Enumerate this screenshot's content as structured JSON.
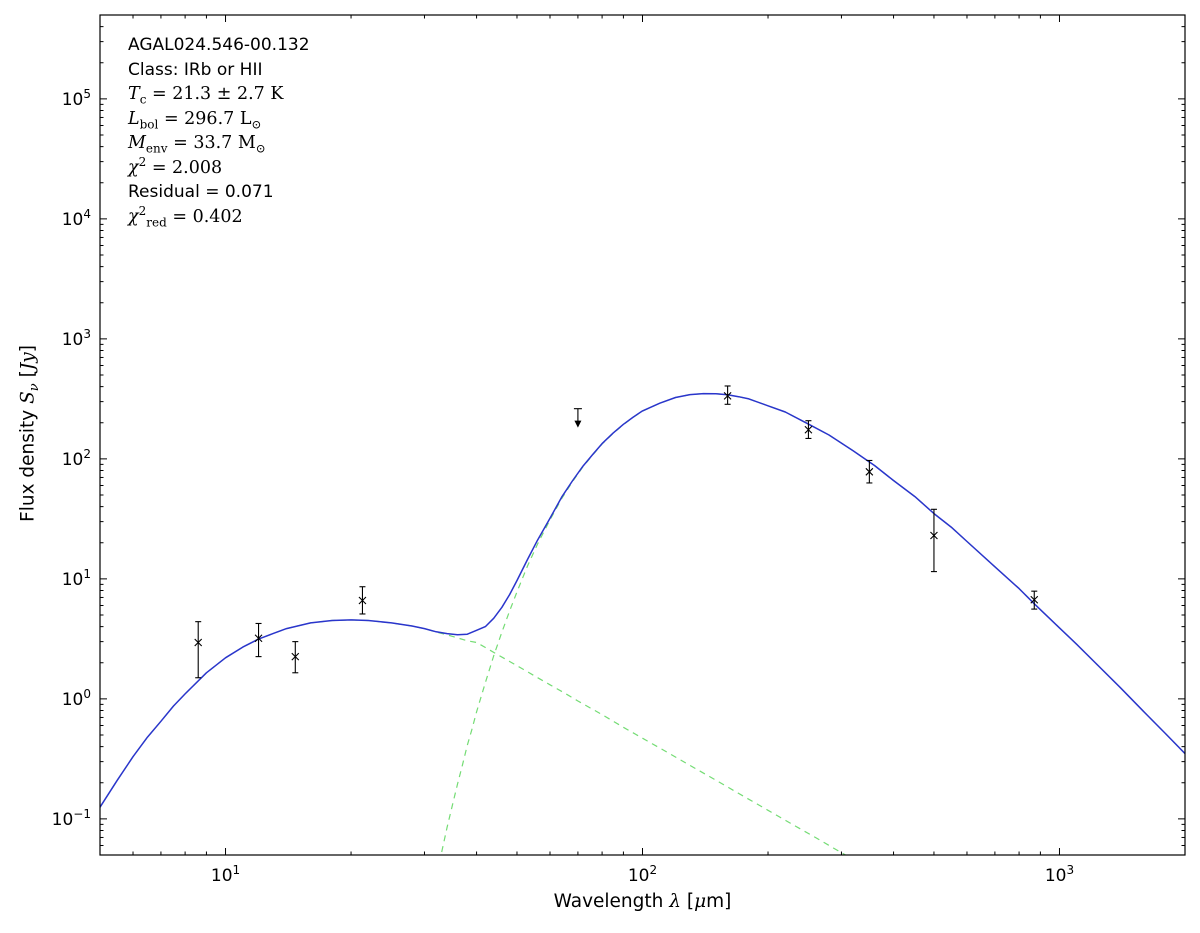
{
  "annotation": {
    "source": "AGAL024.546-00.132",
    "class_line": "Class: IRb or HII",
    "tc": {
      "sym": "T",
      "sub": "c",
      "rest": " = 21.3 ± 2.7 K"
    },
    "lbol": {
      "sym": "L",
      "sub": "bol",
      "rest": " = 296.7 L",
      "unit_sub": "⊙"
    },
    "menv": {
      "sym": "M",
      "sub": "env",
      "rest": " = 33.7 M",
      "unit_sub": "⊙"
    },
    "chi2": {
      "sym": "χ",
      "sup": "2",
      "rest": " = 2.008"
    },
    "residual": "Residual = 0.071",
    "chi2red": {
      "sym": "χ",
      "sup": "2",
      "sub": "red",
      "rest": " = 0.402"
    }
  },
  "axis_labels": {
    "xlabel": {
      "text1": "Wavelength ",
      "lambda": "λ",
      "text2": " [",
      "mu": "μ",
      "text3": "m]"
    },
    "ylabel": {
      "text1": "Flux density ",
      "S": "S",
      "nu": "ν",
      "text2": " [",
      "Jy": "Jy",
      "text3": "]"
    }
  },
  "chart_data": {
    "type": "line",
    "title": "",
    "xlabel": "Wavelength λ [μm]",
    "ylabel": "Flux density Sν [Jy]",
    "xscale": "log",
    "yscale": "log",
    "xlim": [
      5,
      2000
    ],
    "ylim": [
      0.05,
      500000
    ],
    "grid": false,
    "legend": false,
    "x_major_ticks": [
      10,
      100,
      1000
    ],
    "x_tick_exponents": [
      1,
      2,
      3
    ],
    "y_tick_exponents": [
      -1,
      0,
      1,
      2,
      3,
      4,
      5
    ],
    "colors": {
      "model_total": "#2a35cc",
      "components": "#74dc74",
      "data": "#000000"
    },
    "series": [
      {
        "id": "warm-component-curve",
        "name": "warm component (dashed)",
        "style": "dashed",
        "color": "#74dc74",
        "width": 1.2,
        "points": [
          [
            5,
            0.125
          ],
          [
            5.5,
            0.21
          ],
          [
            6,
            0.33
          ],
          [
            6.5,
            0.48
          ],
          [
            7,
            0.65
          ],
          [
            7.5,
            0.87
          ],
          [
            8,
            1.1
          ],
          [
            9,
            1.65
          ],
          [
            10,
            2.2
          ],
          [
            11,
            2.7
          ],
          [
            12,
            3.15
          ],
          [
            13,
            3.5
          ],
          [
            14,
            3.85
          ],
          [
            16,
            4.3
          ],
          [
            18,
            4.5
          ],
          [
            20,
            4.55
          ],
          [
            22,
            4.5
          ],
          [
            25,
            4.3
          ],
          [
            28,
            4.05
          ],
          [
            30,
            3.85
          ],
          [
            32,
            3.6
          ],
          [
            34,
            3.42
          ],
          [
            36,
            3.22
          ],
          [
            38,
            3.05
          ],
          [
            40,
            2.95
          ],
          [
            42,
            2.68
          ],
          [
            45,
            2.33
          ],
          [
            48,
            2.05
          ],
          [
            50,
            1.89
          ],
          [
            55,
            1.56
          ],
          [
            60,
            1.31
          ],
          [
            65,
            1.12
          ],
          [
            70,
            0.96
          ],
          [
            80,
            0.74
          ],
          [
            90,
            0.58
          ],
          [
            100,
            0.47
          ],
          [
            115,
            0.357
          ],
          [
            130,
            0.279
          ],
          [
            150,
            0.21
          ],
          [
            170,
            0.163
          ],
          [
            200,
            0.118
          ],
          [
            230,
            0.089
          ],
          [
            260,
            0.07
          ],
          [
            290,
            0.056
          ],
          [
            310,
            0.049
          ],
          [
            330,
            0.043
          ]
        ]
      },
      {
        "id": "cold-component-curve",
        "name": "cold component (dashed)",
        "style": "dashed",
        "color": "#74dc74",
        "width": 1.2,
        "points": [
          [
            33,
            0.053
          ],
          [
            34,
            0.085
          ],
          [
            35,
            0.13
          ],
          [
            36,
            0.195
          ],
          [
            37,
            0.28
          ],
          [
            38,
            0.41
          ],
          [
            39,
            0.56
          ],
          [
            40,
            0.78
          ],
          [
            42,
            1.37
          ],
          [
            44,
            2.3
          ],
          [
            46,
            3.6
          ],
          [
            48,
            5.4
          ],
          [
            50,
            7.8
          ],
          [
            53,
            12.8
          ],
          [
            56,
            19.5
          ],
          [
            60,
            31
          ],
          [
            64,
            46.7
          ],
          [
            68,
            65
          ],
          [
            72,
            86
          ],
          [
            76,
            108
          ],
          [
            80,
            133
          ],
          [
            85,
            163
          ],
          [
            90,
            193
          ],
          [
            95,
            222
          ],
          [
            100,
            250
          ],
          [
            110,
            291
          ],
          [
            120,
            325
          ],
          [
            130,
            343
          ],
          [
            140,
            350
          ],
          [
            150,
            349
          ],
          [
            160,
            342
          ],
          [
            170,
            330
          ],
          [
            180,
            316
          ],
          [
            200,
            277
          ],
          [
            220,
            246
          ],
          [
            250,
            195
          ],
          [
            280,
            158
          ],
          [
            320,
            117
          ],
          [
            360,
            88
          ],
          [
            400,
            66
          ],
          [
            450,
            48.5
          ],
          [
            500,
            35
          ],
          [
            550,
            27
          ],
          [
            600,
            20.5
          ],
          [
            700,
            12.6
          ],
          [
            800,
            8.3
          ],
          [
            870,
            6.2
          ],
          [
            1000,
            3.9
          ],
          [
            1100,
            2.85
          ],
          [
            1200,
            2.11
          ],
          [
            1400,
            1.24
          ],
          [
            1600,
            0.77
          ],
          [
            1800,
            0.51
          ],
          [
            2000,
            0.35
          ]
        ]
      },
      {
        "id": "model-total-curve",
        "name": "total model (solid)",
        "style": "solid",
        "color": "#2a35cc",
        "width": 1.5,
        "points": [
          [
            5,
            0.125
          ],
          [
            5.5,
            0.21
          ],
          [
            6,
            0.33
          ],
          [
            6.5,
            0.48
          ],
          [
            7,
            0.65
          ],
          [
            7.5,
            0.87
          ],
          [
            8,
            1.1
          ],
          [
            9,
            1.65
          ],
          [
            10,
            2.2
          ],
          [
            11,
            2.7
          ],
          [
            12,
            3.15
          ],
          [
            13,
            3.5
          ],
          [
            14,
            3.85
          ],
          [
            16,
            4.3
          ],
          [
            18,
            4.5
          ],
          [
            20,
            4.55
          ],
          [
            22,
            4.5
          ],
          [
            25,
            4.3
          ],
          [
            28,
            4.05
          ],
          [
            30,
            3.85
          ],
          [
            32,
            3.62
          ],
          [
            34,
            3.5
          ],
          [
            36,
            3.42
          ],
          [
            38,
            3.46
          ],
          [
            40,
            3.73
          ],
          [
            42,
            4.0
          ],
          [
            44,
            4.7
          ],
          [
            46,
            5.8
          ],
          [
            48,
            7.4
          ],
          [
            50,
            9.7
          ],
          [
            53,
            14.5
          ],
          [
            56,
            21
          ],
          [
            60,
            32
          ],
          [
            64,
            48
          ],
          [
            68,
            66
          ],
          [
            72,
            87
          ],
          [
            76,
            109
          ],
          [
            80,
            134
          ],
          [
            85,
            164
          ],
          [
            90,
            194
          ],
          [
            95,
            223
          ],
          [
            100,
            251
          ],
          [
            110,
            291
          ],
          [
            120,
            325
          ],
          [
            130,
            343
          ],
          [
            140,
            350
          ],
          [
            150,
            349
          ],
          [
            160,
            342
          ],
          [
            170,
            330
          ],
          [
            180,
            316
          ],
          [
            200,
            277
          ],
          [
            220,
            246
          ],
          [
            250,
            195
          ],
          [
            280,
            158
          ],
          [
            320,
            117
          ],
          [
            360,
            88
          ],
          [
            400,
            66
          ],
          [
            450,
            48.5
          ],
          [
            500,
            35
          ],
          [
            550,
            27
          ],
          [
            600,
            20.5
          ],
          [
            700,
            12.6
          ],
          [
            800,
            8.3
          ],
          [
            870,
            6.2
          ],
          [
            1000,
            3.9
          ],
          [
            1100,
            2.85
          ],
          [
            1200,
            2.11
          ],
          [
            1400,
            1.24
          ],
          [
            1600,
            0.77
          ],
          [
            1800,
            0.51
          ],
          [
            2000,
            0.35
          ]
        ]
      }
    ],
    "data_points": [
      {
        "x": 8.6,
        "y": 2.95,
        "ylo": 1.5,
        "yhi": 4.4
      },
      {
        "x": 12,
        "y": 3.2,
        "ylo": 2.25,
        "yhi": 4.25
      },
      {
        "x": 14.7,
        "y": 2.25,
        "ylo": 1.65,
        "yhi": 3.0
      },
      {
        "x": 21.3,
        "y": 6.6,
        "ylo": 5.1,
        "yhi": 8.6
      },
      {
        "x": 160,
        "y": 335,
        "ylo": 285,
        "yhi": 405
      },
      {
        "x": 250,
        "y": 175,
        "ylo": 148,
        "yhi": 208
      },
      {
        "x": 350,
        "y": 78,
        "ylo": 63,
        "yhi": 97
      },
      {
        "x": 500,
        "y": 23,
        "ylo": 11.5,
        "yhi": 38
      },
      {
        "x": 870,
        "y": 6.7,
        "ylo": 5.6,
        "yhi": 7.9
      }
    ],
    "upper_limits": [
      {
        "x": 70,
        "y": 262
      }
    ]
  }
}
